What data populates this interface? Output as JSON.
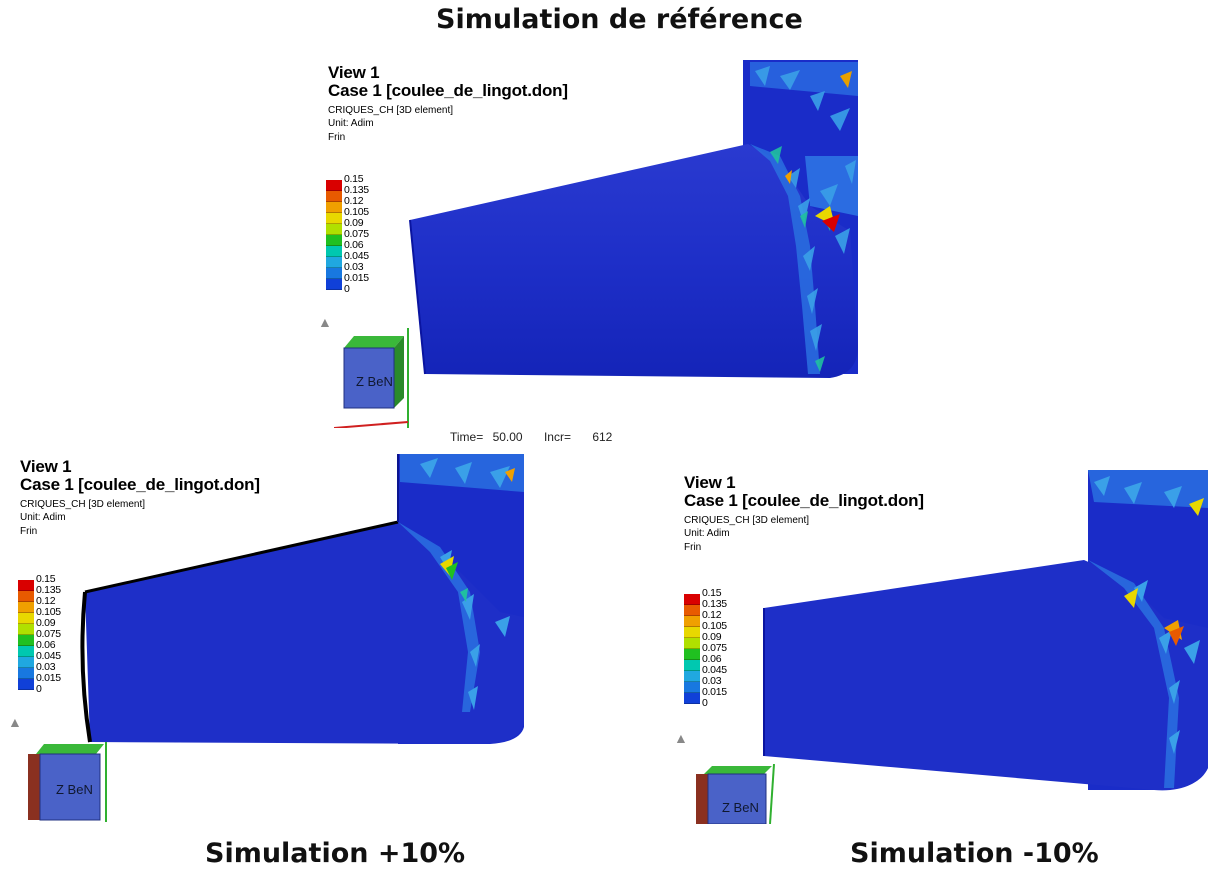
{
  "titles": {
    "top": "Simulation de référence",
    "bottom_left": "Simulation +10%",
    "bottom_right": "Simulation -10%"
  },
  "panels": [
    {
      "view": "View 1",
      "case": "Case 1  [coulee_de_lingot.don]",
      "variable": "CRIQUES_CH [3D element]",
      "unit": "Unit: Adim",
      "field": "Frin",
      "legend_ticks": [
        "0.15",
        "0.135",
        "0.12",
        "0.105",
        "0.09",
        "0.075",
        "0.06",
        "0.045",
        "0.03",
        "0.015",
        "0"
      ],
      "triad_label": "Z BeN"
    },
    {
      "view": "View 1",
      "case": "Case 1  [coulee_de_lingot.don]",
      "variable": "CRIQUES_CH [3D element]",
      "unit": "Unit: Adim",
      "field": "Frin",
      "legend_ticks": [
        "0.15",
        "0.135",
        "0.12",
        "0.105",
        "0.09",
        "0.075",
        "0.06",
        "0.045",
        "0.03",
        "0.015",
        "0"
      ],
      "triad_label": "Z BeN"
    },
    {
      "view": "View 1",
      "case": "Case 1  [coulee_de_lingot.don]",
      "variable": "CRIQUES_CH [3D element]",
      "unit": "Unit: Adim",
      "field": "Frin",
      "legend_ticks": [
        "0.15",
        "0.135",
        "0.12",
        "0.105",
        "0.09",
        "0.075",
        "0.06",
        "0.045",
        "0.03",
        "0.015",
        "0"
      ],
      "triad_label": "Z BeN"
    }
  ],
  "status": {
    "time_label": "Time=",
    "time_value": "50.00",
    "incr_label": "Incr=",
    "incr_value": "612"
  },
  "legend_colors": [
    "#d90000",
    "#e85a00",
    "#f0a000",
    "#e8d800",
    "#b0e000",
    "#20c020",
    "#00c8b0",
    "#20a8e0",
    "#1878e0",
    "#1040d8",
    "#0018c8"
  ]
}
